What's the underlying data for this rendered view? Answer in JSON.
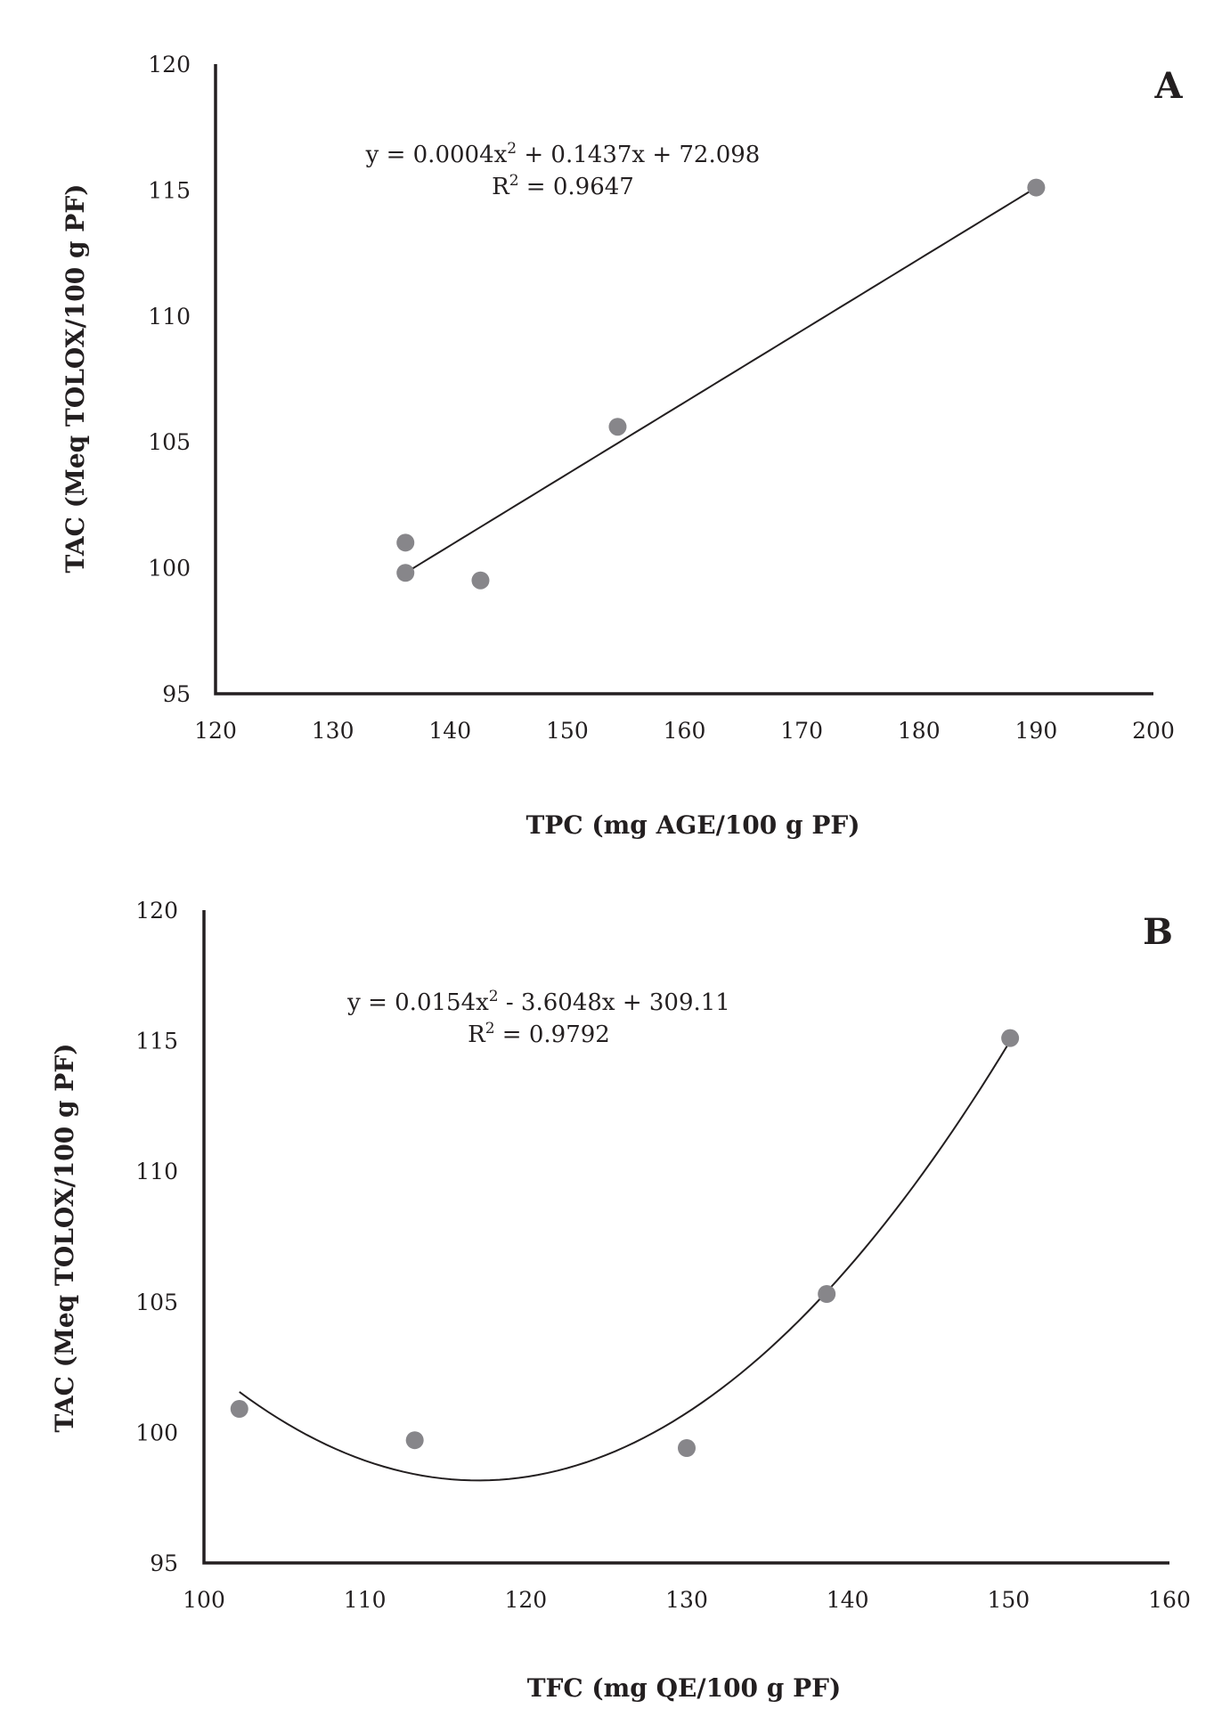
{
  "chart_data": [
    {
      "type": "scatter",
      "panel_label": "A",
      "title": "",
      "xlabel": "TPC (mg AGE/100 g PF)",
      "ylabel": "TAC (Meq TOLOX/100 g PF)",
      "xlim": [
        120,
        200
      ],
      "ylim": [
        95,
        120
      ],
      "xticks": [
        "120",
        "130",
        "140",
        "150",
        "160",
        "170",
        "180",
        "190",
        "200"
      ],
      "yticks": [
        "95",
        "100",
        "105",
        "110",
        "115",
        "120"
      ],
      "grid": false,
      "legend": "none",
      "points": [
        {
          "x": 136.2,
          "y": 101.0
        },
        {
          "x": 136.2,
          "y": 99.8
        },
        {
          "x": 142.6,
          "y": 99.5
        },
        {
          "x": 154.3,
          "y": 105.6
        },
        {
          "x": 190.0,
          "y": 115.1
        }
      ],
      "trendline": {
        "type": "polynomial",
        "coefficients": [
          0.0004,
          0.1437,
          72.098
        ],
        "x_range": [
          136.2,
          190.0
        ],
        "y_range": [
          99.8,
          115.1
        ],
        "equation_text": "y = 0.0004x",
        "equation_sup": "2",
        "equation_rest": " + 0.1437x + 72.098",
        "r2_prefix": "R",
        "r2_sup": "2",
        "r2_rest": " = 0.9647"
      },
      "point_color": "#87868a",
      "line_color": "#231f20"
    },
    {
      "type": "scatter",
      "panel_label": "B",
      "title": "",
      "xlabel": "TFC (mg QE/100 g PF)",
      "ylabel": "TAC (Meq TOLOX/100 g PF)",
      "xlim": [
        100,
        160
      ],
      "ylim": [
        95,
        120
      ],
      "xticks": [
        "100",
        "110",
        "120",
        "130",
        "140",
        "150",
        "160"
      ],
      "yticks": [
        "95",
        "100",
        "105",
        "110",
        "115",
        "120"
      ],
      "grid": false,
      "legend": "none",
      "points": [
        {
          "x": 102.2,
          "y": 100.9
        },
        {
          "x": 113.1,
          "y": 99.7
        },
        {
          "x": 130.0,
          "y": 99.4
        },
        {
          "x": 138.7,
          "y": 105.3
        },
        {
          "x": 150.1,
          "y": 115.1
        }
      ],
      "trendline": {
        "type": "polynomial",
        "coefficients": [
          0.0154,
          -3.6048,
          309.11
        ],
        "x_range": [
          102.2,
          150.1
        ],
        "equation_text": "y = 0.0154x",
        "equation_sup": "2",
        "equation_rest": " - 3.6048x + 309.11",
        "r2_prefix": "R",
        "r2_sup": "2",
        "r2_rest": " = 0.9792"
      },
      "point_color": "#87868a",
      "line_color": "#231f20"
    }
  ]
}
